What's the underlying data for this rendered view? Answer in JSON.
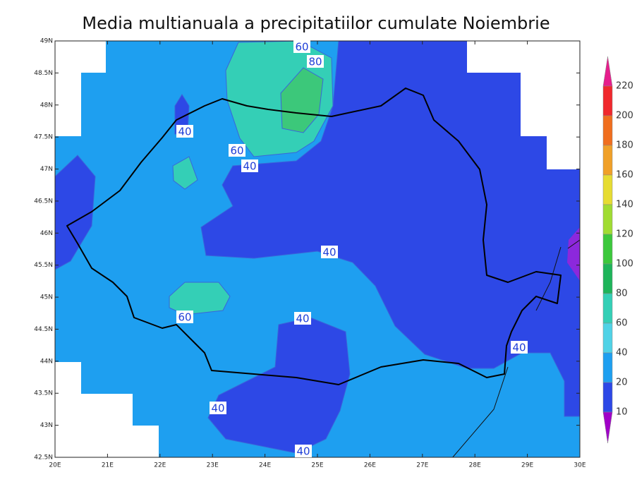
{
  "title": "Media multianuala a precipitatiilor cumulate Noiembrie",
  "lat_labels": [
    "49N",
    "48.5N",
    "48N",
    "47.5N",
    "47N",
    "46.5N",
    "46N",
    "45.5N",
    "45N",
    "44.5N",
    "44N",
    "43.5N",
    "43N",
    "42.5N"
  ],
  "lon_labels": [
    "20E",
    "21E",
    "22E",
    "23E",
    "24E",
    "25E",
    "26E",
    "27E",
    "28E",
    "29E",
    "30E"
  ],
  "colorbar": {
    "levels": [
      220,
      200,
      180,
      160,
      140,
      120,
      100,
      80,
      60,
      40,
      20,
      10
    ]
  },
  "contour_labels": [
    "60",
    "80",
    "40",
    "60",
    "40",
    "40",
    "60",
    "40",
    "40",
    "40",
    "40"
  ]
}
